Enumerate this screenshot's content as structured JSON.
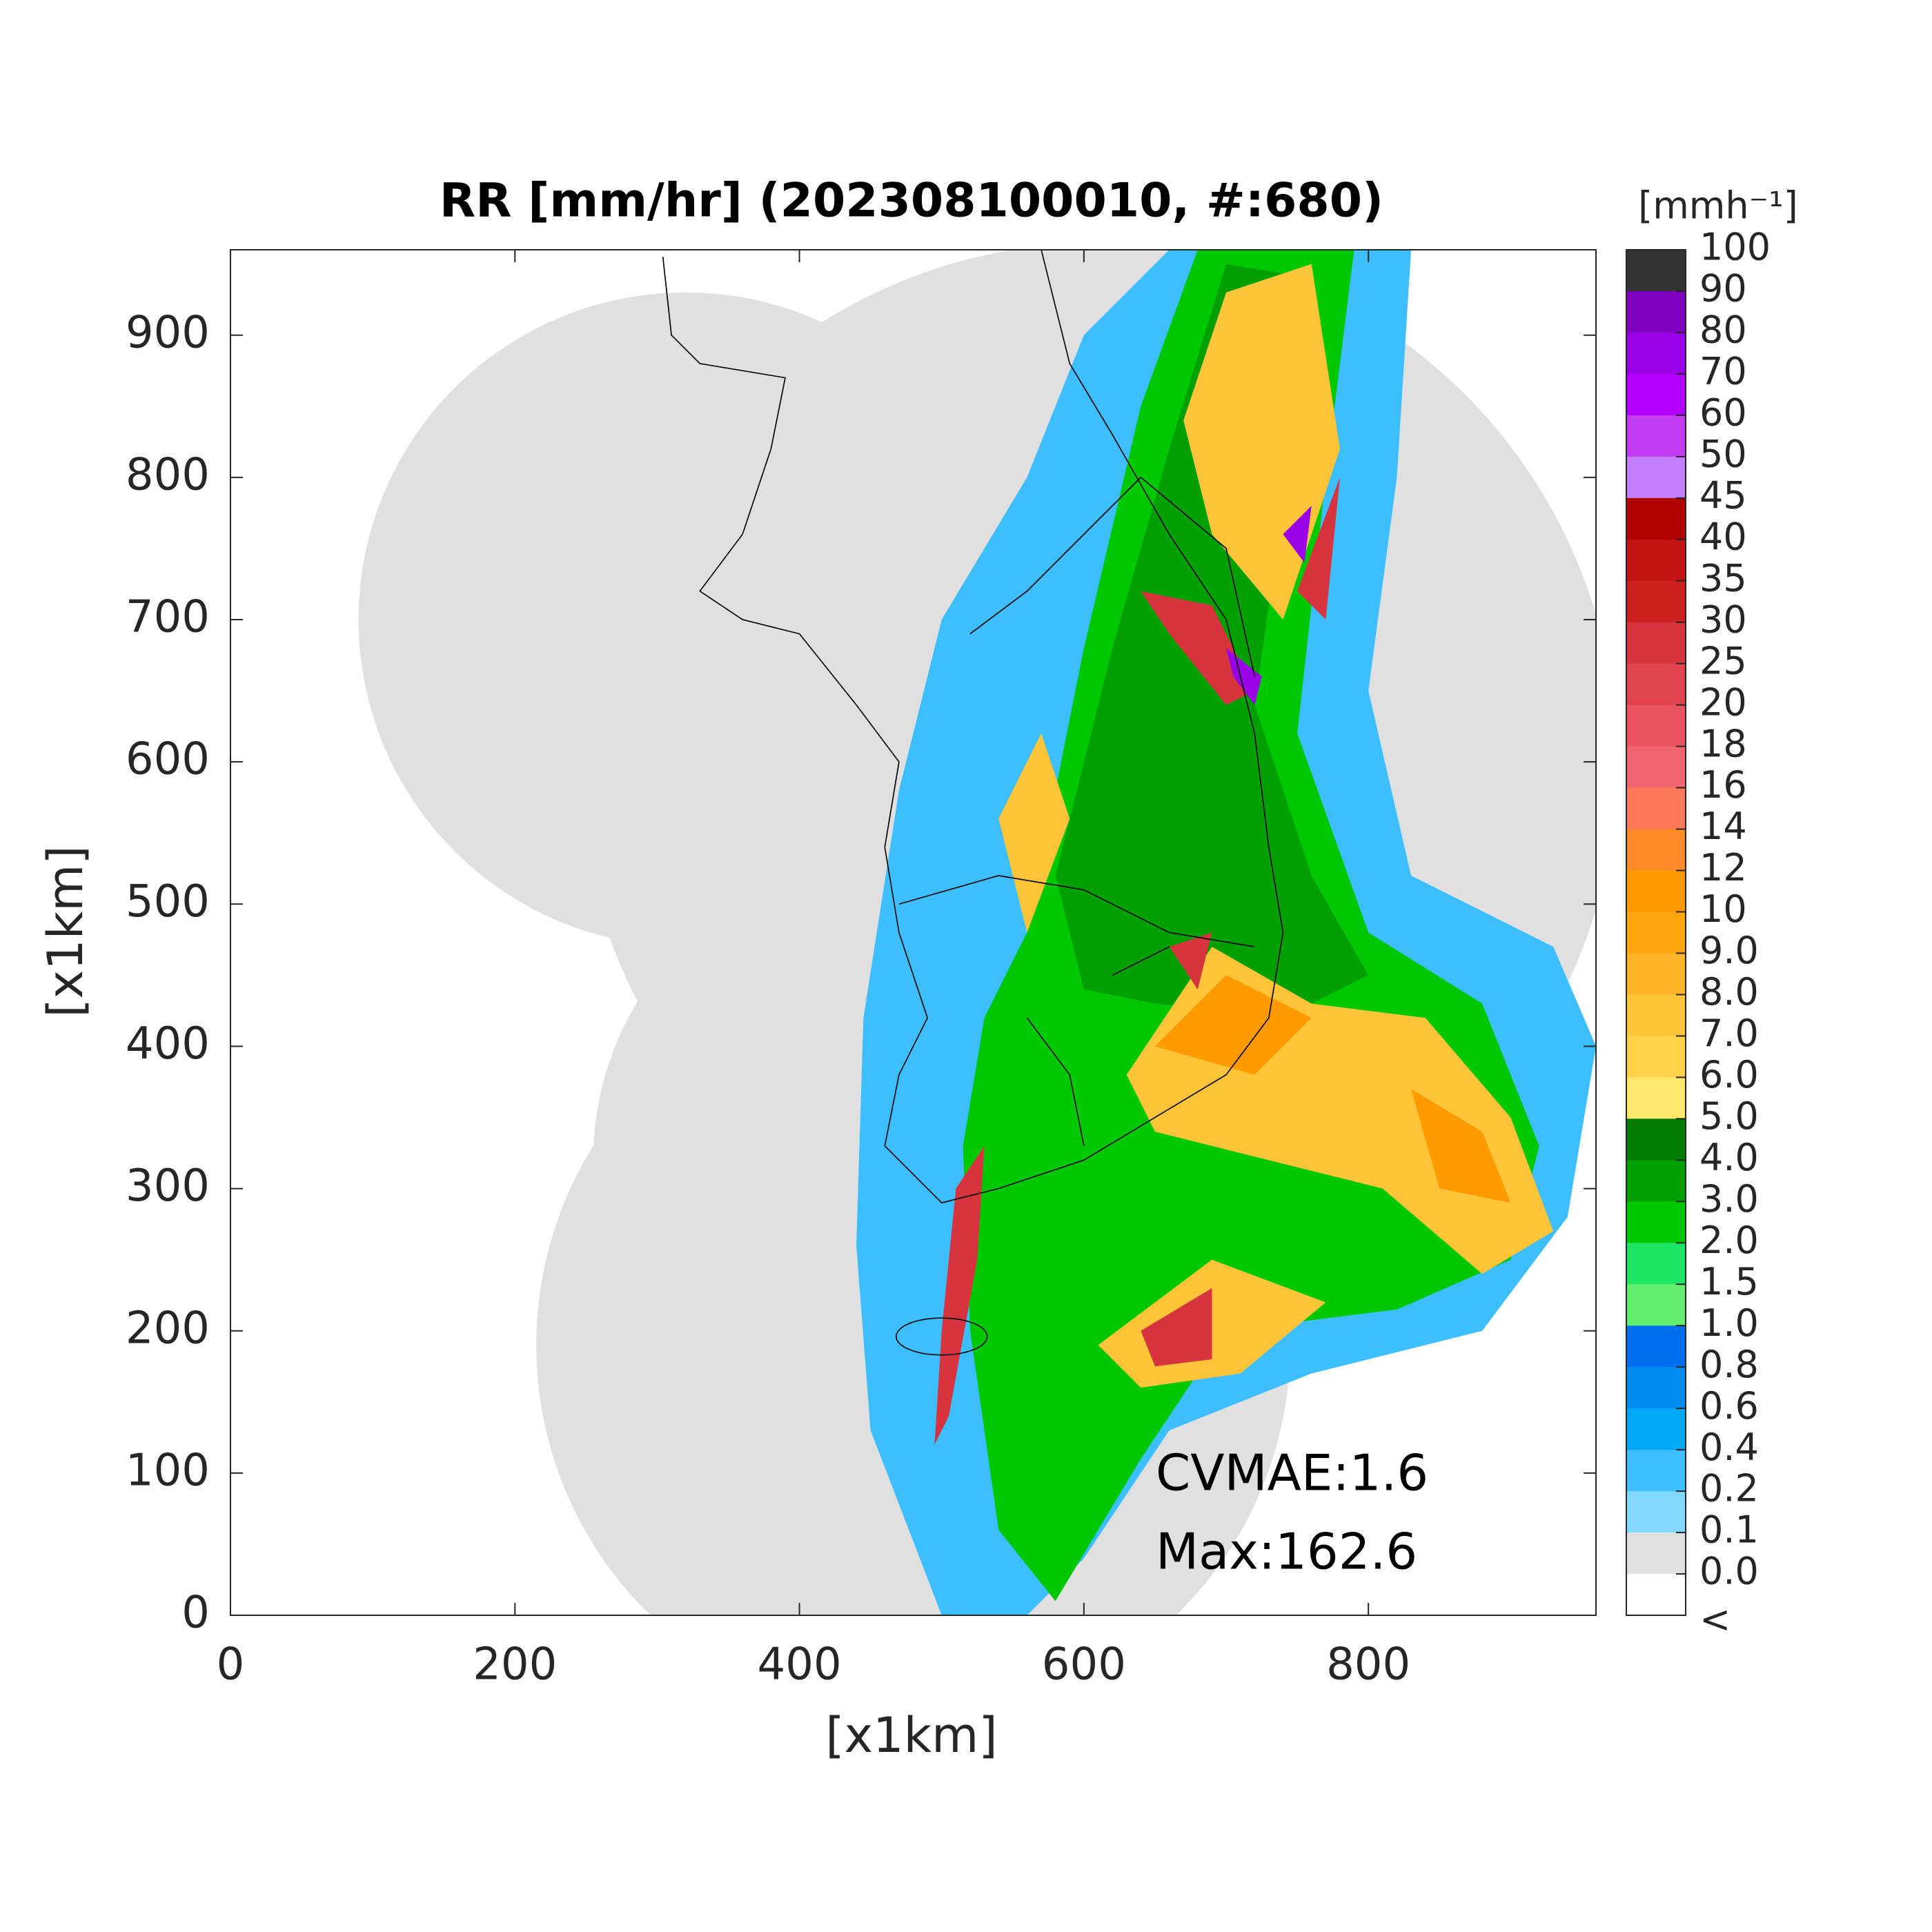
{
  "chart_data": {
    "type": "map",
    "title": "RR [mm/hr] (202308100010, #:680)",
    "xlabel": "[x1km]",
    "ylabel": "[x1km]",
    "xlim": [
      0,
      960
    ],
    "xticks": [
      0,
      200,
      400,
      600,
      800
    ],
    "ylim": [
      0,
      960
    ],
    "yticks": [
      0,
      100,
      200,
      300,
      400,
      500,
      600,
      700,
      800,
      900
    ],
    "colorbar": {
      "title": "[mmh⁻¹]",
      "ticks": [
        100,
        90,
        80,
        70,
        60,
        50,
        45,
        40,
        35,
        30,
        25,
        20,
        18,
        16,
        14,
        12,
        10,
        {
          "value": 9,
          "label": "9.0"
        },
        {
          "value": 8,
          "label": "8.0"
        },
        {
          "value": 7,
          "label": "7.0"
        },
        {
          "value": 6,
          "label": "6.0"
        },
        {
          "value": 5,
          "label": "5.0"
        },
        {
          "value": 4,
          "label": "4.0"
        },
        {
          "value": 3,
          "label": "3.0"
        },
        {
          "value": 2,
          "label": "2.0"
        },
        1.5,
        {
          "value": 1,
          "label": "1.0"
        },
        0.8,
        0.6,
        0.4,
        0.2,
        0.1,
        {
          "value": 0,
          "label": "0.0"
        }
      ],
      "below_label": "<",
      "colors": [
        "#333333",
        "#7f00bf",
        "#9a00e6",
        "#b100ff",
        "#c13cf2",
        "#c47fff",
        "#b00000",
        "#c21212",
        "#cc2020",
        "#d63540",
        "#e0454f",
        "#ea5560",
        "#f06570",
        "#ff7a5a",
        "#ff8a2a",
        "#ff9a00",
        "#ffa510",
        "#ffb428",
        "#ffc438",
        "#ffd24a",
        "#ffe86a",
        "#007a00",
        "#00a000",
        "#00c800",
        "#1ee664",
        "#64f06e",
        "#0070f0",
        "#008cf0",
        "#00a8f5",
        "#3cbeff",
        "#82d8ff",
        "#e0e0e0",
        "#ffffff"
      ]
    },
    "annotations": [
      "CVMAE:1.6",
      "Max:162.6"
    ]
  }
}
